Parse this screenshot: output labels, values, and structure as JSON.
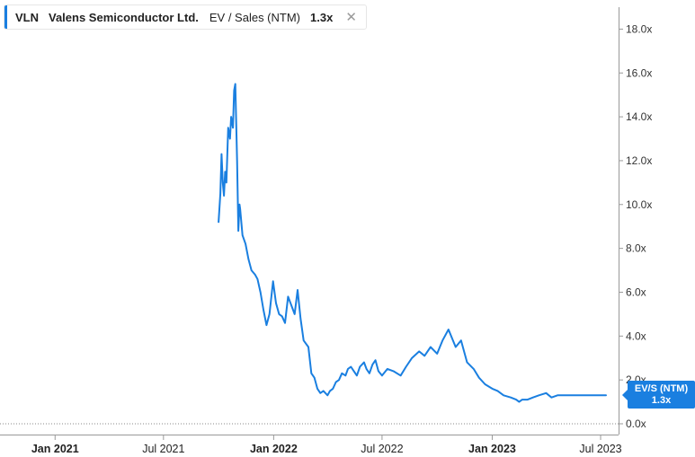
{
  "legend": {
    "ticker": "VLN",
    "company": "Valens Semiconductor Ltd.",
    "metric": "EV / Sales (NTM)",
    "value": "1.3x",
    "close_icon": "close-icon"
  },
  "last_value_flag": {
    "label": "EV/S (NTM)",
    "value": "1.3x"
  },
  "colors": {
    "line": "#1a7fe0",
    "axis": "#999999",
    "text": "#333333"
  },
  "chart_data": {
    "type": "line",
    "title": "",
    "xlabel": "",
    "ylabel": "",
    "xlim": [
      "2020-10-01",
      "2023-07-31"
    ],
    "ylim": [
      0,
      19
    ],
    "grid": false,
    "y_axis_position": "right",
    "yticks": [
      0,
      2,
      4,
      6,
      8,
      10,
      12,
      14,
      16,
      18
    ],
    "ytick_labels": [
      "0.0x",
      "2.0x",
      "4.0x",
      "6.0x",
      "8.0x",
      "10.0x",
      "12.0x",
      "14.0x",
      "16.0x",
      "18.0x"
    ],
    "xticks": [
      {
        "date": "2021-01-01",
        "label": "Jan 2021",
        "major": true
      },
      {
        "date": "2021-07-01",
        "label": "Jul 2021",
        "major": false
      },
      {
        "date": "2022-01-01",
        "label": "Jan 2022",
        "major": true
      },
      {
        "date": "2022-07-01",
        "label": "Jul 2022",
        "major": false
      },
      {
        "date": "2023-01-01",
        "label": "Jan 2023",
        "major": true
      },
      {
        "date": "2023-07-01",
        "label": "Jul 2023",
        "major": false
      }
    ],
    "series": [
      {
        "name": "EV/S (NTM)",
        "x": [
          "2021-10-01",
          "2021-10-04",
          "2021-10-06",
          "2021-10-08",
          "2021-10-10",
          "2021-10-12",
          "2021-10-14",
          "2021-10-17",
          "2021-10-20",
          "2021-10-22",
          "2021-10-25",
          "2021-10-27",
          "2021-10-29",
          "2021-11-01",
          "2021-11-03",
          "2021-11-05",
          "2021-11-06",
          "2021-11-10",
          "2021-11-15",
          "2021-11-20",
          "2021-11-25",
          "2021-12-01",
          "2021-12-05",
          "2021-12-10",
          "2021-12-15",
          "2021-12-20",
          "2021-12-25",
          "2021-12-31",
          "2022-01-05",
          "2022-01-10",
          "2022-01-15",
          "2022-01-20",
          "2022-01-25",
          "2022-02-01",
          "2022-02-05",
          "2022-02-10",
          "2022-02-15",
          "2022-02-20",
          "2022-02-28",
          "2022-03-05",
          "2022-03-10",
          "2022-03-15",
          "2022-03-20",
          "2022-03-25",
          "2022-04-01",
          "2022-04-05",
          "2022-04-10",
          "2022-04-15",
          "2022-04-20",
          "2022-04-25",
          "2022-05-01",
          "2022-05-05",
          "2022-05-10",
          "2022-05-15",
          "2022-05-20",
          "2022-05-25",
          "2022-06-01",
          "2022-06-05",
          "2022-06-10",
          "2022-06-15",
          "2022-06-20",
          "2022-06-25",
          "2022-07-01",
          "2022-07-10",
          "2022-07-20",
          "2022-08-01",
          "2022-08-10",
          "2022-08-20",
          "2022-09-01",
          "2022-09-10",
          "2022-09-20",
          "2022-10-01",
          "2022-10-10",
          "2022-10-20",
          "2022-11-01",
          "2022-11-10",
          "2022-11-20",
          "2022-12-01",
          "2022-12-10",
          "2022-12-20",
          "2023-01-01",
          "2023-01-10",
          "2023-01-20",
          "2023-02-01",
          "2023-02-10",
          "2023-02-15",
          "2023-02-20",
          "2023-03-01",
          "2023-03-10",
          "2023-03-20",
          "2023-04-01",
          "2023-04-10",
          "2023-04-20",
          "2023-05-01",
          "2023-05-10",
          "2023-05-20",
          "2023-06-01",
          "2023-06-10",
          "2023-06-20",
          "2023-07-01",
          "2023-07-10"
        ],
        "values": [
          9.2,
          10.5,
          12.3,
          11.0,
          10.4,
          11.5,
          11.0,
          13.5,
          13.0,
          14.0,
          13.5,
          15.2,
          15.5,
          12.0,
          8.8,
          10.0,
          9.8,
          8.6,
          8.2,
          7.5,
          7.0,
          6.8,
          6.6,
          6.0,
          5.2,
          4.5,
          5.0,
          6.5,
          5.5,
          5.0,
          4.9,
          4.6,
          5.8,
          5.3,
          5.0,
          6.1,
          4.8,
          3.8,
          3.5,
          2.3,
          2.1,
          1.6,
          1.4,
          1.5,
          1.3,
          1.5,
          1.6,
          1.9,
          2.0,
          2.3,
          2.2,
          2.5,
          2.6,
          2.4,
          2.2,
          2.6,
          2.8,
          2.5,
          2.3,
          2.7,
          2.9,
          2.4,
          2.2,
          2.5,
          2.4,
          2.2,
          2.6,
          3.0,
          3.3,
          3.1,
          3.5,
          3.2,
          3.8,
          4.3,
          3.5,
          3.8,
          2.8,
          2.5,
          2.1,
          1.8,
          1.6,
          1.5,
          1.3,
          1.2,
          1.1,
          1.0,
          1.1,
          1.1,
          1.2,
          1.3,
          1.4,
          1.2,
          1.3,
          1.3,
          1.3,
          1.3,
          1.3,
          1.3,
          1.3,
          1.3,
          1.3
        ],
        "color": "#1a7fe0"
      }
    ]
  }
}
